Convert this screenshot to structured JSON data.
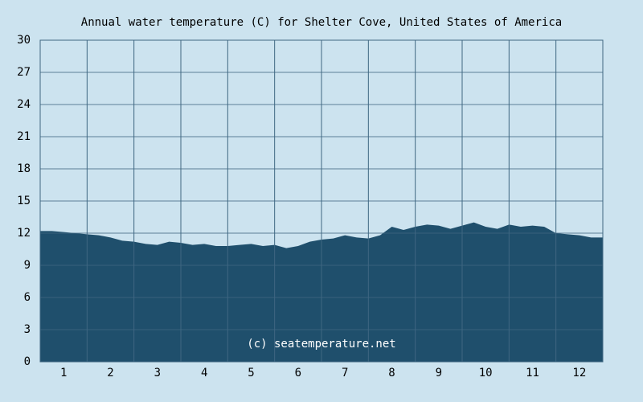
{
  "chart_data": {
    "type": "area",
    "title": "Annual water temperature (C) for Shelter Cove, United States of America",
    "watermark": "(c) seatemperature.net",
    "x": [
      0.5,
      0.75,
      1,
      1.25,
      1.5,
      1.75,
      2,
      2.25,
      2.5,
      2.75,
      3,
      3.25,
      3.5,
      3.75,
      4,
      4.25,
      4.5,
      4.75,
      5,
      5.25,
      5.5,
      5.75,
      6,
      6.25,
      6.5,
      6.75,
      7,
      7.25,
      7.5,
      7.75,
      8,
      8.25,
      8.5,
      8.75,
      9,
      9.25,
      9.5,
      9.75,
      10,
      10.25,
      10.5,
      10.75,
      11,
      11.25,
      11.5,
      11.75,
      12,
      12.25,
      12.5
    ],
    "values": [
      12.2,
      12.2,
      12.1,
      12.0,
      11.9,
      11.8,
      11.6,
      11.3,
      11.2,
      11.0,
      10.9,
      11.2,
      11.1,
      10.9,
      11.0,
      10.8,
      10.8,
      10.9,
      11.0,
      10.8,
      10.9,
      10.6,
      10.8,
      11.2,
      11.4,
      11.5,
      11.8,
      11.6,
      11.5,
      11.8,
      12.6,
      12.3,
      12.6,
      12.8,
      12.7,
      12.4,
      12.7,
      13.0,
      12.6,
      12.4,
      12.8,
      12.6,
      12.7,
      12.6,
      12.0,
      11.9,
      11.8,
      11.6,
      11.6
    ],
    "color": "#1f4f6c",
    "xlim": [
      0.5,
      12.5
    ],
    "xticks": [
      1,
      2,
      3,
      4,
      5,
      6,
      7,
      8,
      9,
      10,
      11,
      12
    ],
    "ylim": [
      0,
      30
    ],
    "yticks": [
      0,
      3,
      6,
      9,
      12,
      15,
      18,
      21,
      24,
      27,
      30
    ],
    "grid": true
  }
}
